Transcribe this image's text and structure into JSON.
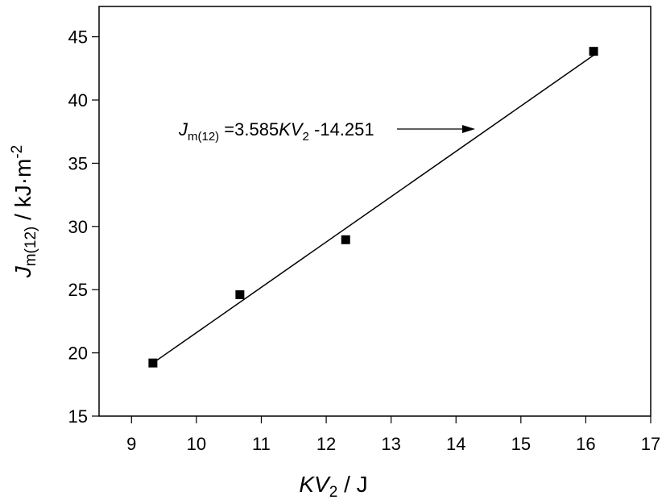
{
  "chart_data": {
    "type": "scatter",
    "x_label": [
      "KV",
      "2",
      " / J"
    ],
    "y_label": [
      "J",
      "m(12)",
      " / kJ·m",
      "-2"
    ],
    "annotation": [
      "J",
      "m(12)",
      " =3.585",
      "KV",
      "2",
      " -14.251"
    ],
    "fit": {
      "slope": 3.585,
      "intercept": -14.251
    },
    "x": [
      9.33,
      10.67,
      12.3,
      16.12
    ],
    "values": [
      19.2,
      24.6,
      28.95,
      43.85
    ],
    "color": "#000000",
    "xlim": [
      8.5,
      17
    ],
    "xticks": [
      9,
      10,
      11,
      12,
      13,
      14,
      15,
      16,
      17
    ],
    "ylim": [
      15,
      47.4
    ],
    "yticks": [
      15,
      20,
      25,
      30,
      35,
      40,
      45
    ]
  }
}
